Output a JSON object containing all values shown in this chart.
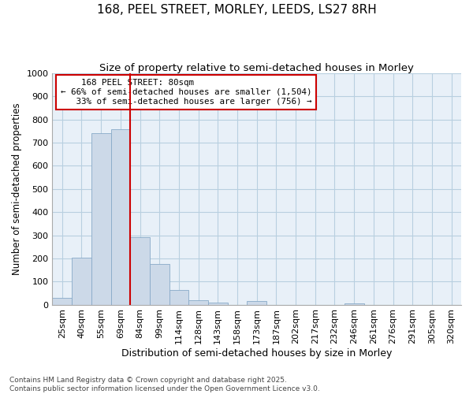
{
  "title": "168, PEEL STREET, MORLEY, LEEDS, LS27 8RH",
  "subtitle": "Size of property relative to semi-detached houses in Morley",
  "xlabel": "Distribution of semi-detached houses by size in Morley",
  "ylabel": "Number of semi-detached properties",
  "categories": [
    "25sqm",
    "40sqm",
    "55sqm",
    "69sqm",
    "84sqm",
    "99sqm",
    "114sqm",
    "128sqm",
    "143sqm",
    "158sqm",
    "173sqm",
    "187sqm",
    "202sqm",
    "217sqm",
    "232sqm",
    "246sqm",
    "261sqm",
    "276sqm",
    "291sqm",
    "305sqm",
    "320sqm"
  ],
  "values": [
    28,
    203,
    740,
    757,
    293,
    175,
    62,
    18,
    8,
    0,
    14,
    0,
    0,
    0,
    0,
    5,
    0,
    0,
    0,
    0,
    0
  ],
  "bar_color": "#ccd9e8",
  "bar_edge_color": "#88aac8",
  "property_label": "168 PEEL STREET: 80sqm",
  "pct_smaller": 66,
  "count_smaller": 1504,
  "pct_larger": 33,
  "count_larger": 756,
  "vline_color": "#cc0000",
  "annotation_box_color": "#cc0000",
  "ylim": [
    0,
    1000
  ],
  "yticks": [
    0,
    100,
    200,
    300,
    400,
    500,
    600,
    700,
    800,
    900,
    1000
  ],
  "grid_color": "#b8cfe0",
  "background_color": "#e8f0f8",
  "footer_line1": "Contains HM Land Registry data © Crown copyright and database right 2025.",
  "footer_line2": "Contains public sector information licensed under the Open Government Licence v3.0.",
  "title_fontsize": 11,
  "subtitle_fontsize": 9.5,
  "xlabel_fontsize": 9,
  "ylabel_fontsize": 8.5,
  "tick_fontsize": 8,
  "footer_fontsize": 6.5
}
